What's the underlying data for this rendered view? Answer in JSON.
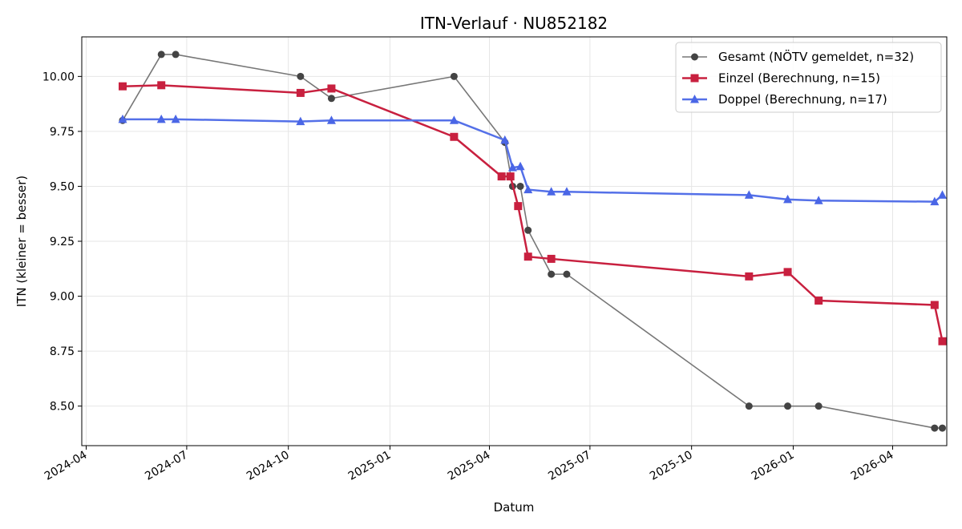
{
  "chart_data": {
    "type": "line",
    "title": "ITN-Verlauf · NU852182",
    "xlabel": "Datum",
    "ylabel": "ITN  (kleiner = besser)",
    "xlim": [
      "2024-03-28",
      "2026-05-20"
    ],
    "ylim": [
      8.32,
      10.18
    ],
    "grid": true,
    "legend_position": "top-right",
    "x_ticks": [
      "2024-04",
      "2024-07",
      "2024-10",
      "2025-01",
      "2025-04",
      "2025-07",
      "2025-10",
      "2026-01",
      "2026-04"
    ],
    "y_ticks": [
      "8.50",
      "8.75",
      "9.00",
      "9.25",
      "9.50",
      "9.75",
      "10.00"
    ],
    "series": [
      {
        "name": "Gesamt (NÖTV gemeldet, n=32)",
        "color": "#777777",
        "marker_color": "#444444",
        "marker": "circle",
        "line_width": 1.6,
        "x": [
          "2024-05-04",
          "2024-06-08",
          "2024-06-21",
          "2024-10-12",
          "2024-11-09",
          "2025-02-28",
          "2025-04-15",
          "2025-04-22",
          "2025-04-29",
          "2025-05-06",
          "2025-05-27",
          "2025-06-10",
          "2025-11-22",
          "2025-12-27",
          "2026-01-24",
          "2026-05-09",
          "2026-05-16"
        ],
        "values": [
          9.8,
          10.1,
          10.1,
          10.0,
          9.9,
          10.0,
          9.7,
          9.5,
          9.5,
          9.3,
          9.1,
          9.1,
          8.5,
          8.5,
          8.5,
          8.4,
          8.4
        ]
      },
      {
        "name": "Einzel (Berechnung, n=15)",
        "color": "#c8203f",
        "marker_color": "#c8203f",
        "marker": "square",
        "line_width": 2.5,
        "x": [
          "2024-05-04",
          "2024-06-08",
          "2024-10-12",
          "2024-11-09",
          "2025-02-28",
          "2025-04-12",
          "2025-04-20",
          "2025-04-27",
          "2025-05-06",
          "2025-05-27",
          "2025-11-22",
          "2025-12-27",
          "2026-01-24",
          "2026-05-09",
          "2026-05-16"
        ],
        "values": [
          9.955,
          9.96,
          9.925,
          9.945,
          9.725,
          9.545,
          9.545,
          9.41,
          9.18,
          9.17,
          9.09,
          9.11,
          8.98,
          8.96,
          8.795
        ]
      },
      {
        "name": "Doppel (Berechnung, n=17)",
        "color": "#5470e8",
        "marker_color": "#4a66e6",
        "marker": "triangle",
        "line_width": 2.5,
        "x": [
          "2024-05-04",
          "2024-06-08",
          "2024-06-21",
          "2024-10-12",
          "2024-11-09",
          "2025-02-28",
          "2025-04-15",
          "2025-04-22",
          "2025-04-29",
          "2025-05-06",
          "2025-05-27",
          "2025-06-10",
          "2025-11-22",
          "2025-12-27",
          "2026-01-24",
          "2026-05-09",
          "2026-05-16"
        ],
        "values": [
          9.805,
          9.805,
          9.805,
          9.795,
          9.8,
          9.8,
          9.71,
          9.585,
          9.59,
          9.485,
          9.475,
          9.475,
          9.46,
          9.44,
          9.435,
          9.43,
          9.46
        ]
      }
    ]
  }
}
